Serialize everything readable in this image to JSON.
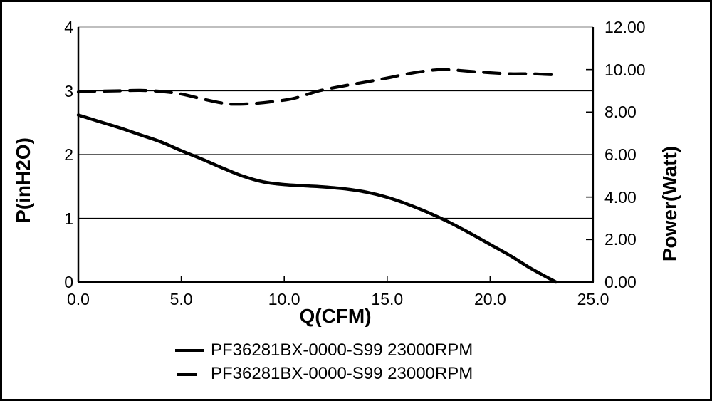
{
  "window": {
    "background": "#ffffff",
    "border_color": "#000000"
  },
  "colors": {
    "curve": "#000000",
    "grid": "#000000",
    "top_border": "#999999",
    "axis": "#000000",
    "text": "#000000"
  },
  "chart_data": {
    "type": "line",
    "title": "",
    "xlabel": "Q(CFM)",
    "ylabel_left": "P(inH2O)",
    "ylabel_right": "Power(Watt)",
    "x_range": [
      0,
      25
    ],
    "y_left_range": [
      0,
      4
    ],
    "y_right_range": [
      0,
      12
    ],
    "x_tick_labels": [
      "0.0",
      "5.0",
      "10.0",
      "15.0",
      "20.0",
      "25.0"
    ],
    "x_tick_values": [
      0,
      5,
      10,
      15,
      20,
      25
    ],
    "y_left_tick_labels": [
      "4",
      "3",
      "2",
      "1",
      "0"
    ],
    "y_left_tick_values": [
      4,
      3,
      2,
      1,
      0
    ],
    "y_right_tick_labels": [
      "12.00",
      "10.00",
      "8.00",
      "6.00",
      "4.00",
      "2.00",
      "0.00"
    ],
    "y_right_tick_values": [
      12,
      10,
      8,
      6,
      4,
      2,
      0
    ],
    "gridline_values_left": [
      1,
      2,
      3
    ],
    "x_minor_tick_values": [
      5,
      10,
      15,
      20
    ],
    "y_right_minor_tick_values": [
      2,
      4,
      8,
      10
    ],
    "grid": true,
    "legend_position": "bottom",
    "series": [
      {
        "name": "PF36281BX-0000-S99 23000RPM",
        "axis": "left",
        "style": "solid",
        "points": [
          [
            0,
            2.62
          ],
          [
            1,
            2.52
          ],
          [
            2,
            2.42
          ],
          [
            3,
            2.31
          ],
          [
            4,
            2.2
          ],
          [
            5,
            2.06
          ],
          [
            6,
            1.93
          ],
          [
            7,
            1.79
          ],
          [
            8,
            1.66
          ],
          [
            9,
            1.57
          ],
          [
            10,
            1.53
          ],
          [
            11,
            1.51
          ],
          [
            12,
            1.49
          ],
          [
            13,
            1.46
          ],
          [
            14,
            1.41
          ],
          [
            15,
            1.33
          ],
          [
            16,
            1.22
          ],
          [
            17,
            1.09
          ],
          [
            18,
            0.94
          ],
          [
            19,
            0.77
          ],
          [
            20,
            0.59
          ],
          [
            21,
            0.41
          ],
          [
            22,
            0.21
          ],
          [
            23.2,
            0
          ]
        ]
      },
      {
        "name": "PF36281BX-0000-S99 23000RPM",
        "axis": "right",
        "style": "dashed",
        "points": [
          [
            0,
            8.95
          ],
          [
            1,
            8.98
          ],
          [
            2,
            9.0
          ],
          [
            3,
            9.02
          ],
          [
            4,
            8.97
          ],
          [
            5,
            8.85
          ],
          [
            6,
            8.62
          ],
          [
            7,
            8.42
          ],
          [
            7.5,
            8.37
          ],
          [
            8.5,
            8.4
          ],
          [
            9.5,
            8.5
          ],
          [
            10.5,
            8.65
          ],
          [
            11.7,
            9.0
          ],
          [
            13,
            9.25
          ],
          [
            14,
            9.42
          ],
          [
            15,
            9.6
          ],
          [
            16,
            9.8
          ],
          [
            17,
            9.95
          ],
          [
            17.8,
            10.0
          ],
          [
            19,
            9.92
          ],
          [
            20,
            9.85
          ],
          [
            21,
            9.8
          ],
          [
            22,
            9.8
          ],
          [
            23.2,
            9.75
          ]
        ]
      }
    ]
  }
}
